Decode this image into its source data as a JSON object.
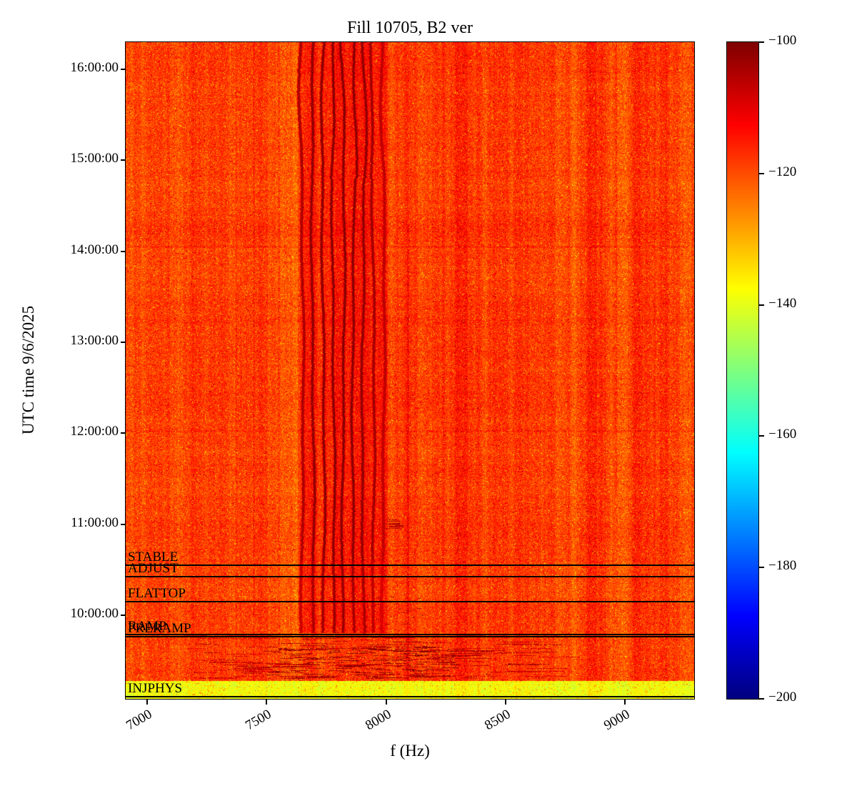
{
  "chart_data": {
    "type": "heatmap",
    "title": "Fill 10705, B2 ver",
    "xlabel": "f (Hz)",
    "ylabel": "UTC time 9/6/2025",
    "x_axis": {
      "unit": "Hz",
      "min": 6910,
      "max": 9290,
      "ticks": [
        {
          "label": "7000",
          "hz": 7000
        },
        {
          "label": "7500",
          "hz": 7500
        },
        {
          "label": "8000",
          "hz": 8000
        },
        {
          "label": "8500",
          "hz": 8500
        },
        {
          "label": "9000",
          "hz": 9000
        }
      ]
    },
    "y_axis": {
      "date": "9/6/2025",
      "min_hours": 9.08,
      "max_hours": 16.3,
      "ticks": [
        {
          "label": "16:00:00",
          "hours": 16
        },
        {
          "label": "15:00:00",
          "hours": 15
        },
        {
          "label": "14:00:00",
          "hours": 14
        },
        {
          "label": "13:00:00",
          "hours": 13
        },
        {
          "label": "12:00:00",
          "hours": 12
        },
        {
          "label": "11:00:00",
          "hours": 11
        },
        {
          "label": "10:00:00",
          "hours": 10
        }
      ]
    },
    "colorbar": {
      "colormap": "jet",
      "min": -200,
      "max": -100,
      "ticks": [
        {
          "label": "−100",
          "value": -100
        },
        {
          "label": "−120",
          "value": -120
        },
        {
          "label": "−140",
          "value": -140
        },
        {
          "label": "−160",
          "value": -160
        },
        {
          "label": "−180",
          "value": -180
        },
        {
          "label": "−200",
          "value": -200
        }
      ]
    },
    "beam_modes": [
      {
        "label": "STABLE",
        "time": "10:33:00",
        "hours": 10.55
      },
      {
        "label": "ADJUST",
        "time": "10:25:00",
        "hours": 10.42
      },
      {
        "label": "FLATTOP",
        "time": "10:09:00",
        "hours": 10.15
      },
      {
        "label": "RAMP",
        "time": "09:47:00",
        "hours": 9.79
      },
      {
        "label": "PRERAMP",
        "time": "09:46:00",
        "hours": 9.76
      },
      {
        "label": "INJPHYS",
        "time": "09:06:00",
        "hours": 9.1
      }
    ],
    "heatmap": {
      "background_db": -119,
      "noise_db": 5,
      "lines_start_hours": 9.8,
      "cluster_range_hz": [
        7630,
        8005
      ],
      "spectral_lines": [
        {
          "hz": 7648,
          "peak_db": -106
        },
        {
          "hz": 7692,
          "peak_db": -103
        },
        {
          "hz": 7736,
          "peak_db": -102
        },
        {
          "hz": 7778,
          "peak_db": -101
        },
        {
          "hz": 7820,
          "peak_db": -101
        },
        {
          "hz": 7862,
          "peak_db": -102
        },
        {
          "hz": 7903,
          "peak_db": -103
        },
        {
          "hz": 7945,
          "peak_db": -105
        },
        {
          "hz": 7988,
          "peak_db": -108
        }
      ],
      "faint_lines": [
        {
          "hz": 7370,
          "boost_db": 2.5
        },
        {
          "hz": 7445,
          "boost_db": 3
        },
        {
          "hz": 7550,
          "boost_db": 2.5
        },
        {
          "hz": 8090,
          "boost_db": 4,
          "t_max": 14.3
        },
        {
          "hz": 8125,
          "boost_db": 2.5
        },
        {
          "hz": 8960,
          "boost_db": 3.5,
          "t_min": 11.3
        }
      ],
      "faint_rows_hours": [
        14.05,
        12.02
      ],
      "injection_band": {
        "top_hours": 9.28,
        "level_db": -138
      }
    }
  }
}
